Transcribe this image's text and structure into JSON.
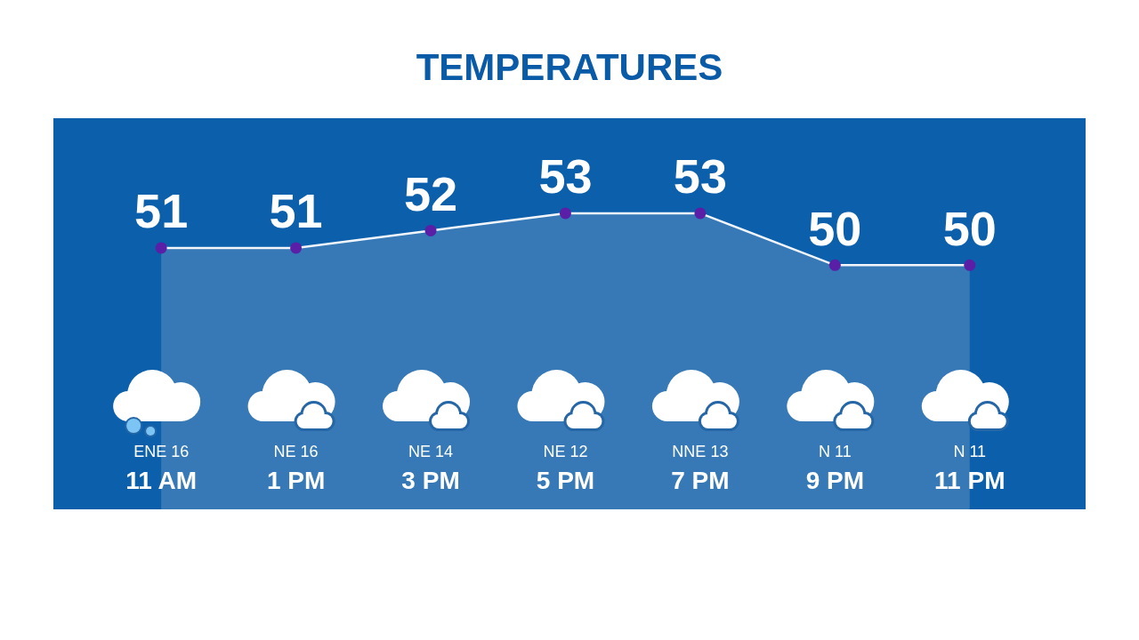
{
  "chart_data": {
    "type": "area",
    "title": "TEMPERATURES",
    "categories": [
      "ENE 16\n11 AM",
      "NE 16\n1 PM",
      "NE 14\n3 PM",
      "NE 12\n5 PM",
      "NNE 13\n7 PM",
      "N 11\n9 PM",
      "N 11\n11 PM"
    ],
    "series": [
      {
        "color": "#3679b6",
        "values": [
          51,
          51,
          52,
          53,
          53,
          50,
          50
        ]
      }
    ],
    "data_labels": true,
    "marker": "circle"
  }
}
